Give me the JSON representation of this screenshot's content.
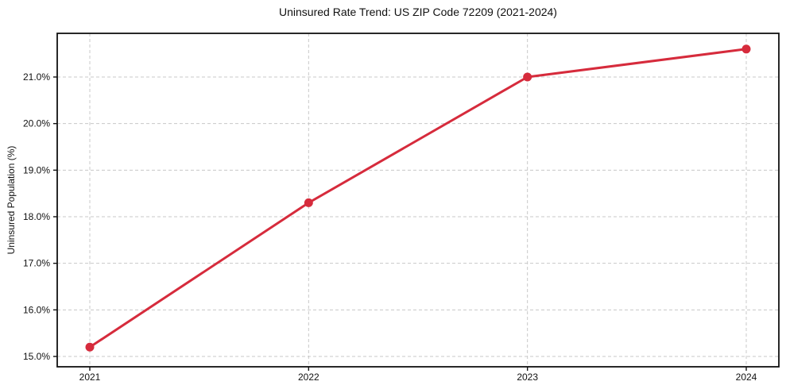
{
  "figure": {
    "title": "Uninsured Rate Trend: US ZIP Code 72209 (2021-2024)"
  },
  "chart_data": {
    "type": "line",
    "title": "Uninsured Rate Trend: US ZIP Code 72209 (2021-2024)",
    "categories": [
      "2021",
      "2022",
      "2023",
      "2024"
    ],
    "series": [
      {
        "name": "Uninsured rate",
        "values": [
          15.2,
          18.3,
          21.0,
          21.6
        ],
        "color": "#d62b3c",
        "marker": "circle"
      }
    ],
    "xlabel": "",
    "ylabel": "Uninsured Population (%)",
    "ylim": [
      14.78,
      21.95
    ],
    "yticks": [
      15.0,
      16.0,
      17.0,
      18.0,
      19.0,
      20.0,
      21.0
    ],
    "ytick_labels": [
      "15.0%",
      "16.0%",
      "17.0%",
      "18.0%",
      "19.0%",
      "20.0%",
      "21.0%"
    ],
    "xtick_labels": [
      "2021",
      "2022",
      "2023",
      "2024"
    ],
    "grid": true,
    "grid_style": "dashed",
    "legend": "none"
  },
  "colors": {
    "line": "#d62b3c",
    "marker": "#d62b3c",
    "grid": "#c8c8c8",
    "spine": "#111111",
    "text": "#111111",
    "background": "#ffffff"
  }
}
